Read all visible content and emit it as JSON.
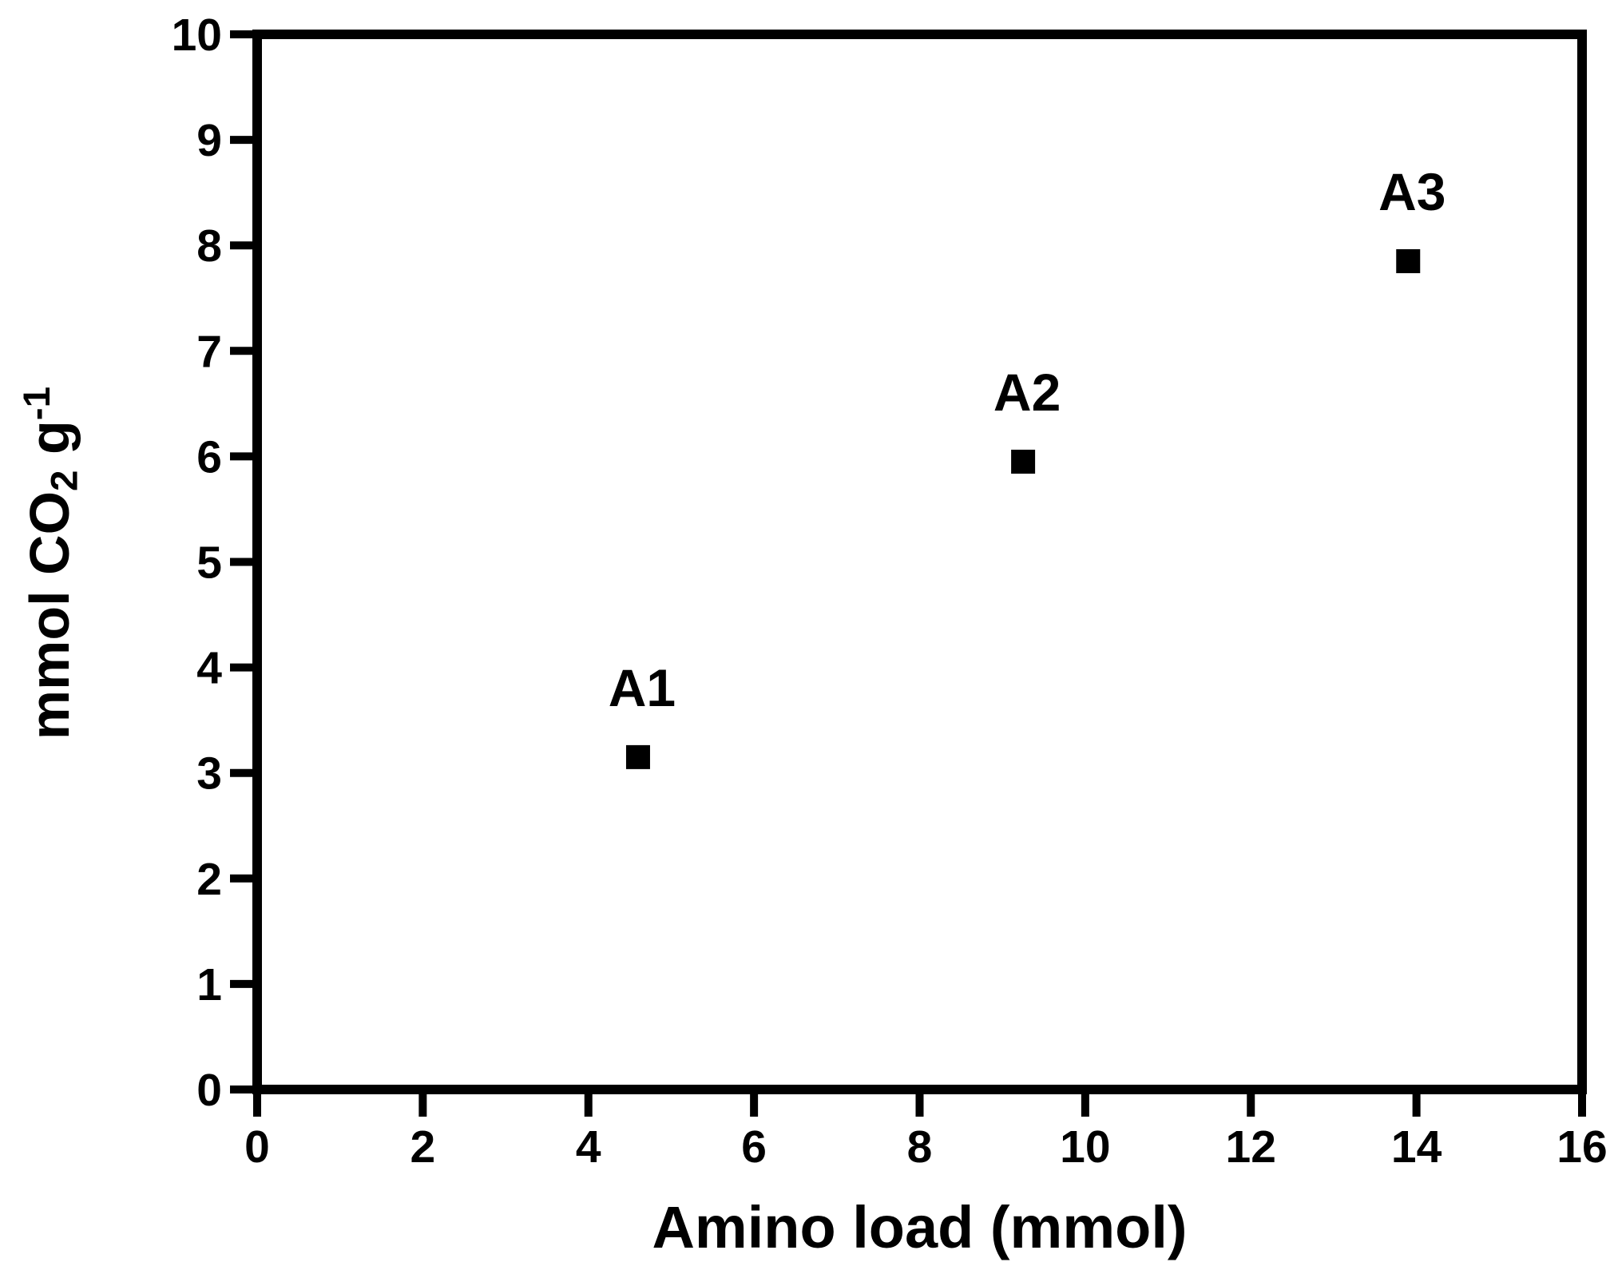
{
  "chart_data": {
    "type": "scatter",
    "title": "",
    "xlabel": "Amino load (mmol)",
    "ylabel": "mmol CO2 g-1",
    "ylabel_parts": {
      "base": "mmol CO",
      "subscript": "2",
      "middle": " g",
      "superscript": "-1"
    },
    "xlim": [
      0,
      16
    ],
    "ylim": [
      0,
      10
    ],
    "x_ticks": [
      0,
      2,
      4,
      6,
      8,
      10,
      12,
      14,
      16
    ],
    "y_ticks": [
      0,
      1,
      2,
      3,
      4,
      5,
      6,
      7,
      8,
      9,
      10
    ],
    "grid": false,
    "legend": false,
    "marker": "filled-square",
    "points": [
      {
        "label": "A1",
        "x": 4.6,
        "y": 3.15
      },
      {
        "label": "A2",
        "x": 9.25,
        "y": 5.95
      },
      {
        "label": "A3",
        "x": 13.9,
        "y": 7.85
      }
    ]
  },
  "colors": {
    "foreground": "#000000",
    "background": "#ffffff"
  }
}
